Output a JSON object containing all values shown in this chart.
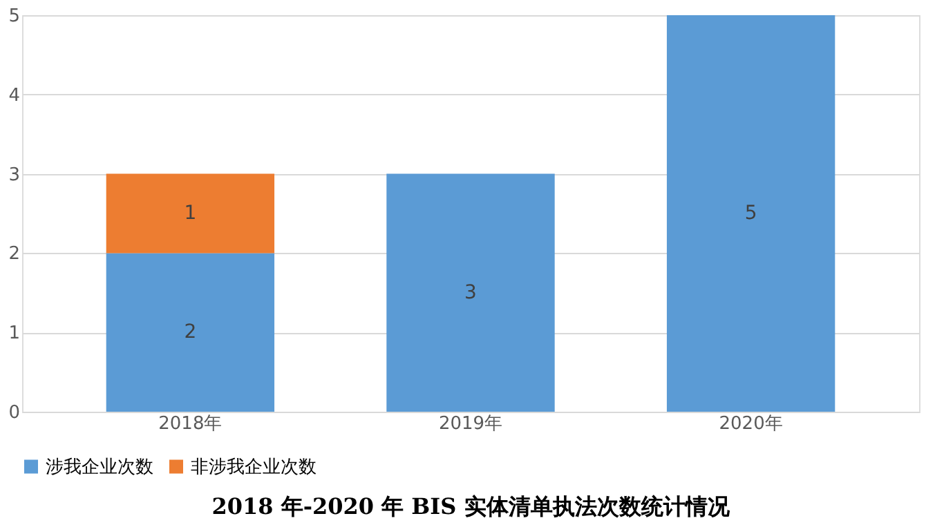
{
  "chart_data": {
    "type": "bar",
    "title": "2018 年-2020 年 BIS 实体清单执法次数统计情况",
    "categories": [
      "2018年",
      "2019年",
      "2020年"
    ],
    "series": [
      {
        "name": "涉我企业次数",
        "color": "#5b9bd5",
        "values": [
          2,
          3,
          5
        ]
      },
      {
        "name": "非涉我企业次数",
        "color": "#ed7d31",
        "values": [
          1,
          null,
          null
        ]
      }
    ],
    "stacked": true,
    "ylim": [
      0,
      5
    ],
    "yticks": [
      0,
      1,
      2,
      3,
      4,
      5
    ],
    "grid": "y",
    "legend": "bottom",
    "data_labels": true
  }
}
